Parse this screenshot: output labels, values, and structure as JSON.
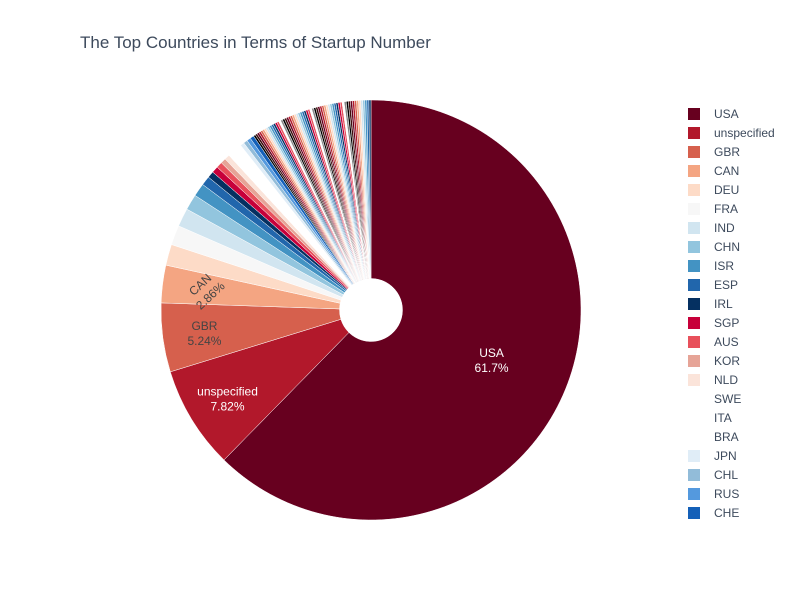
{
  "chart_data": {
    "type": "pie",
    "title": "The Top Countries in Terms of Startup Number",
    "hole": 0.15,
    "direction": "clockwise",
    "start_angle": 90,
    "slices": [
      {
        "label": "USA",
        "percent": 61.7,
        "color": "#67001f"
      },
      {
        "label": "unspecified",
        "percent": 7.82,
        "color": "#b2182b"
      },
      {
        "label": "GBR",
        "percent": 5.24,
        "color": "#d6604d"
      },
      {
        "label": "CAN",
        "percent": 2.86,
        "color": "#f4a582"
      },
      {
        "label": "DEU",
        "percent": 1.6,
        "color": "#fddbc7"
      },
      {
        "label": "FRA",
        "percent": 1.5,
        "color": "#f7f7f7"
      },
      {
        "label": "IND",
        "percent": 1.4,
        "color": "#d1e5f0"
      },
      {
        "label": "CHN",
        "percent": 1.2,
        "color": "#92c5de"
      },
      {
        "label": "ISR",
        "percent": 1.0,
        "color": "#4393c3"
      },
      {
        "label": "ESP",
        "percent": 0.7,
        "color": "#2166ac"
      },
      {
        "label": "IRL",
        "percent": 0.5,
        "color": "#053061"
      },
      {
        "label": "SGP",
        "percent": 0.5,
        "color": "#c7003a"
      },
      {
        "label": "AUS",
        "percent": 0.45,
        "color": "#e8505b"
      },
      {
        "label": "KOR",
        "percent": 0.4,
        "color": "#e6a497"
      },
      {
        "label": "NLD",
        "percent": 0.4,
        "color": "#fbe4da"
      },
      {
        "label": "SWE",
        "percent": 0.4,
        "color": "#ffffff"
      },
      {
        "label": "ITA",
        "percent": 0.4,
        "color": "#ffffff"
      },
      {
        "label": "BRA",
        "percent": 0.35,
        "color": "#ffffff"
      },
      {
        "label": "JPN",
        "percent": 0.3,
        "color": "#e0edf7"
      },
      {
        "label": "CHL",
        "percent": 0.3,
        "color": "#92bcd9"
      },
      {
        "label": "RUS",
        "percent": 0.3,
        "color": "#5499de"
      },
      {
        "label": "CHE",
        "percent": 0.3,
        "color": "#1460b8"
      }
    ],
    "other_slices_percent": 9.35,
    "other_slice_colors": [
      "#000000",
      "#3d0c0c",
      "#67001f",
      "#b2182b",
      "#d6604d",
      "#f4a582",
      "#fddbc7",
      "#d1e5f0",
      "#92c5de",
      "#4393c3",
      "#2166ac",
      "#053061",
      "#c7003a",
      "#e8505b",
      "#ffffff",
      "#888888"
    ],
    "legend_position": "right",
    "labels_shown": [
      "USA",
      "unspecified",
      "GBR",
      "CAN"
    ]
  }
}
